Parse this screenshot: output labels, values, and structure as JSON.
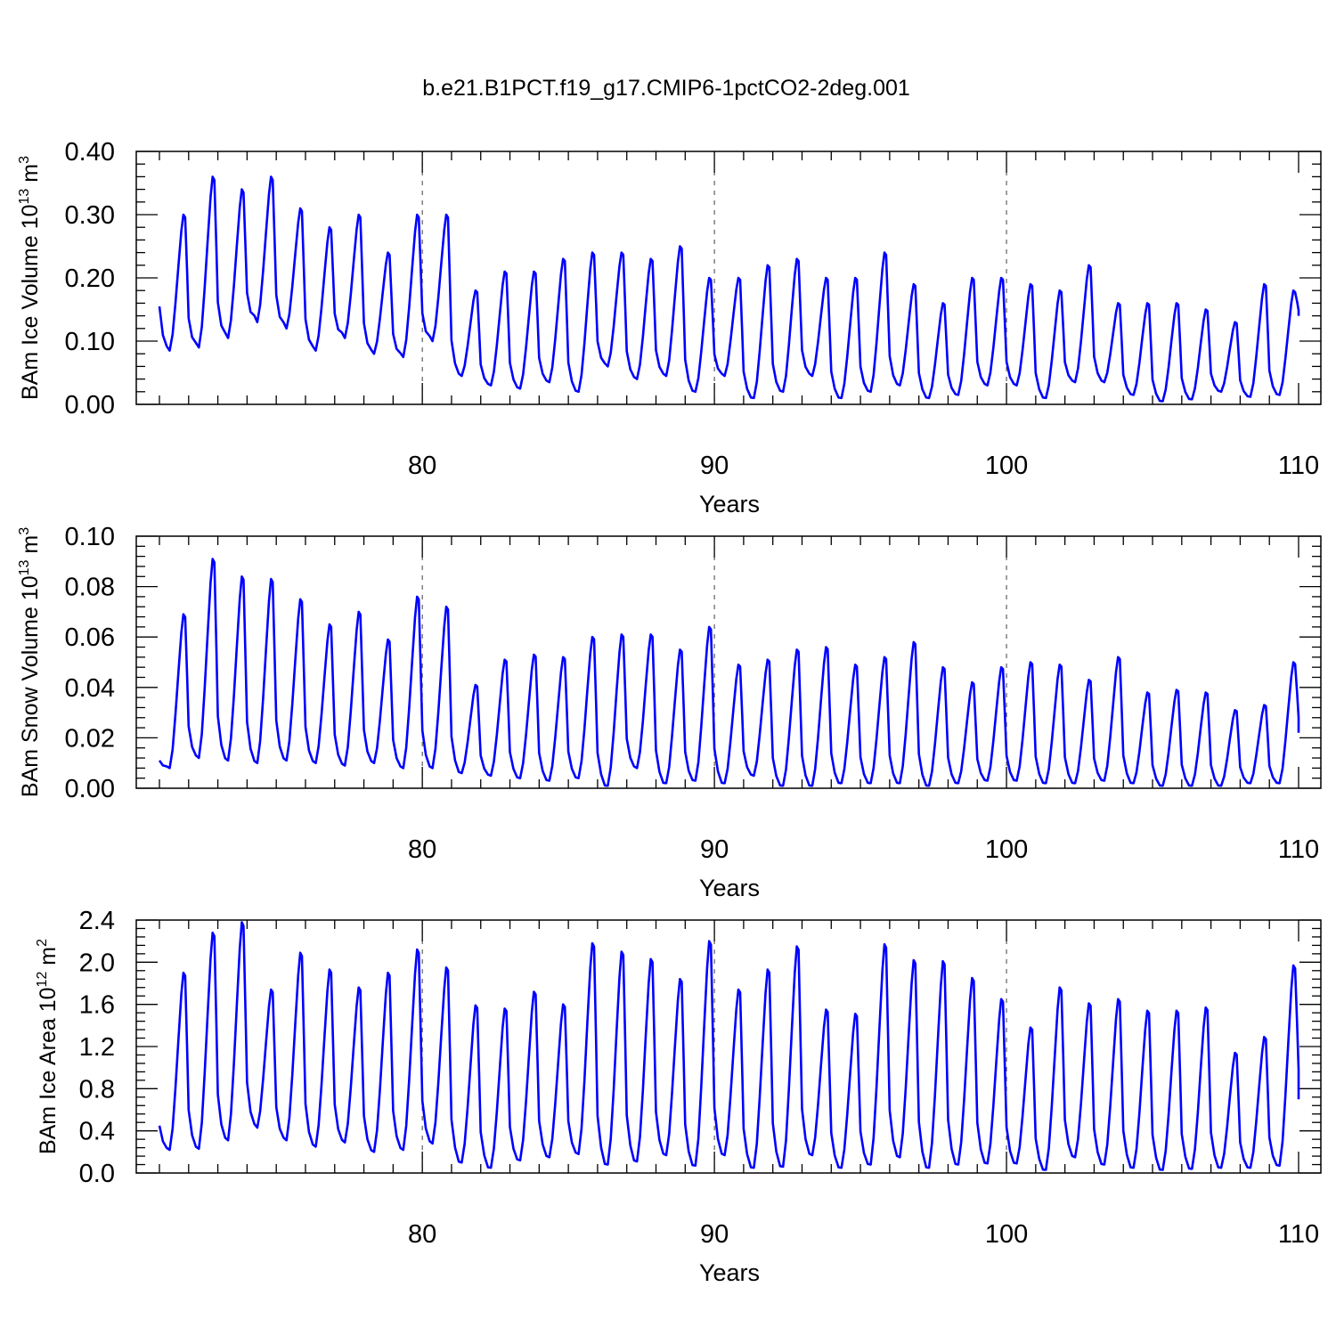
{
  "title": "b.e21.B1PCT.f19_g17.CMIP6-1pctCO2-2deg.001",
  "line_color": "#0000ff",
  "chart_data": [
    {
      "type": "line",
      "title": "",
      "xlabel": "Years",
      "ylabel_main": "BAm Ice Volume 10",
      "ylabel_exp": "13",
      "ylabel_unit": "m",
      "ylabel_unit_exp": "3",
      "xlim": [
        71,
        110
      ],
      "ylim": [
        0,
        0.4
      ],
      "xticks": [
        80,
        90,
        100,
        110
      ],
      "xtick_labels": [
        "80",
        "90",
        "100",
        "110"
      ],
      "yticks": [
        0,
        0.1,
        0.2,
        0.3,
        0.4
      ],
      "ytick_labels": [
        "0.00",
        "0.10",
        "0.20",
        "0.30",
        "0.40"
      ],
      "grid": "dashed vertical at x ticks",
      "series": [
        {
          "start_year": 71,
          "peaks": [
            0.3,
            0.36,
            0.34,
            0.36,
            0.31,
            0.28,
            0.3,
            0.24,
            0.3,
            0.3,
            0.18,
            0.21,
            0.21,
            0.23,
            0.24,
            0.24,
            0.23,
            0.25,
            0.2,
            0.2,
            0.22,
            0.23,
            0.2,
            0.2,
            0.24,
            0.19,
            0.16,
            0.2,
            0.2,
            0.19,
            0.18,
            0.22,
            0.16,
            0.16,
            0.16,
            0.15,
            0.13,
            0.19,
            0.18
          ],
          "troughs": [
            0.085,
            0.09,
            0.105,
            0.13,
            0.12,
            0.085,
            0.105,
            0.08,
            0.075,
            0.1,
            0.045,
            0.03,
            0.025,
            0.035,
            0.02,
            0.06,
            0.04,
            0.045,
            0.02,
            0.045,
            0.01,
            0.02,
            0.045,
            0.01,
            0.02,
            0.03,
            0.01,
            0.015,
            0.03,
            0.03,
            0.01,
            0.035,
            0.035,
            0.015,
            0.005,
            0.008,
            0.02,
            0.012,
            0.015
          ],
          "start_value": 0.155,
          "end_value": 0.14
        }
      ]
    },
    {
      "type": "line",
      "title": "",
      "xlabel": "Years",
      "ylabel_main": "BAm Snow Volume 10",
      "ylabel_exp": "13",
      "ylabel_unit": "m",
      "ylabel_unit_exp": "3",
      "xlim": [
        71,
        110
      ],
      "ylim": [
        0,
        0.1
      ],
      "xticks": [
        80,
        90,
        100,
        110
      ],
      "xtick_labels": [
        "80",
        "90",
        "100",
        "110"
      ],
      "yticks": [
        0,
        0.02,
        0.04,
        0.06,
        0.08,
        0.1
      ],
      "ytick_labels": [
        "0.00",
        "0.02",
        "0.04",
        "0.06",
        "0.08",
        "0.10"
      ],
      "grid": "dashed vertical at x ticks",
      "series": [
        {
          "start_year": 71,
          "peaks": [
            0.069,
            0.091,
            0.084,
            0.083,
            0.075,
            0.065,
            0.07,
            0.059,
            0.076,
            0.072,
            0.041,
            0.051,
            0.053,
            0.052,
            0.06,
            0.061,
            0.061,
            0.055,
            0.064,
            0.049,
            0.051,
            0.055,
            0.056,
            0.049,
            0.052,
            0.058,
            0.048,
            0.042,
            0.048,
            0.05,
            0.049,
            0.043,
            0.052,
            0.038,
            0.039,
            0.038,
            0.031,
            0.033,
            0.05
          ],
          "troughs": [
            0.008,
            0.012,
            0.011,
            0.01,
            0.011,
            0.01,
            0.009,
            0.01,
            0.008,
            0.008,
            0.006,
            0.005,
            0.004,
            0.003,
            0.004,
            0.001,
            0.008,
            0.002,
            0.003,
            0.002,
            0.005,
            0.001,
            0.001,
            0.002,
            0.002,
            0.002,
            0.001,
            0.002,
            0.003,
            0.003,
            0.002,
            0.002,
            0.003,
            0.002,
            0.001,
            0.001,
            0.001,
            0.002,
            0.002
          ],
          "start_value": 0.011,
          "end_value": 0.022
        }
      ]
    },
    {
      "type": "line",
      "title": "",
      "xlabel": "Years",
      "ylabel_main": "BAm Ice Area 10",
      "ylabel_exp": "12",
      "ylabel_unit": "m",
      "ylabel_unit_exp": "2",
      "xlim": [
        71,
        110
      ],
      "ylim": [
        0,
        2.4
      ],
      "xticks": [
        80,
        90,
        100,
        110
      ],
      "xtick_labels": [
        "80",
        "90",
        "100",
        "110"
      ],
      "yticks": [
        0,
        0.4,
        0.8,
        1.2,
        1.6,
        2.0,
        2.4
      ],
      "ytick_labels": [
        "0.0",
        "0.4",
        "0.8",
        "1.2",
        "1.6",
        "2.0",
        "2.4"
      ],
      "grid": "dashed vertical at x ticks",
      "series": [
        {
          "start_year": 71,
          "peaks": [
            1.9,
            2.28,
            2.38,
            1.74,
            2.09,
            1.93,
            1.76,
            1.9,
            2.12,
            1.95,
            1.59,
            1.56,
            1.72,
            1.6,
            2.18,
            2.1,
            2.03,
            1.84,
            2.2,
            1.74,
            1.93,
            2.15,
            1.55,
            1.51,
            2.17,
            2.02,
            2.01,
            1.85,
            1.65,
            1.38,
            1.76,
            1.61,
            1.65,
            1.54,
            1.54,
            1.57,
            1.14,
            1.29,
            1.97
          ],
          "troughs": [
            0.22,
            0.23,
            0.31,
            0.43,
            0.31,
            0.25,
            0.29,
            0.2,
            0.22,
            0.28,
            0.1,
            0.05,
            0.12,
            0.15,
            0.18,
            0.08,
            0.11,
            0.17,
            0.07,
            0.17,
            0.05,
            0.06,
            0.17,
            0.05,
            0.08,
            0.15,
            0.05,
            0.08,
            0.09,
            0.09,
            0.03,
            0.15,
            0.08,
            0.05,
            0.03,
            0.04,
            0.05,
            0.05,
            0.07
          ],
          "start_value": 0.45,
          "end_value": 0.7
        }
      ]
    }
  ]
}
